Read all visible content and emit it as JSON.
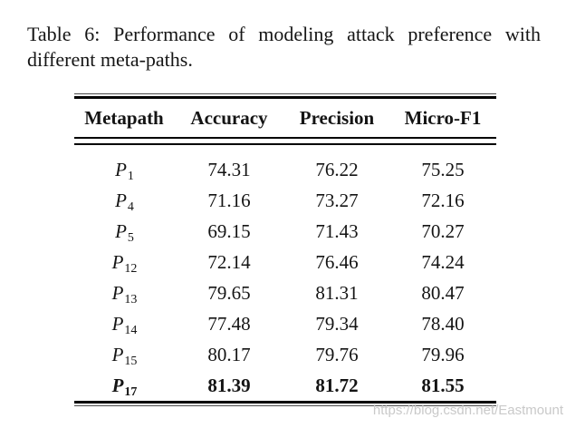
{
  "caption": {
    "line1": "Table 6: Performance of modeling attack preference with",
    "line2": "different meta-paths."
  },
  "table": {
    "columns": [
      "Metapath",
      "Accuracy",
      "Precision",
      "Micro-F1"
    ],
    "rows": [
      {
        "metapath_base": "P",
        "metapath_sub": "1",
        "accuracy": "74.31",
        "precision": "76.22",
        "micro_f1": "75.25",
        "bold": false
      },
      {
        "metapath_base": "P",
        "metapath_sub": "4",
        "accuracy": "71.16",
        "precision": "73.27",
        "micro_f1": "72.16",
        "bold": false
      },
      {
        "metapath_base": "P",
        "metapath_sub": "5",
        "accuracy": "69.15",
        "precision": "71.43",
        "micro_f1": "70.27",
        "bold": false
      },
      {
        "metapath_base": "P",
        "metapath_sub": "12",
        "accuracy": "72.14",
        "precision": "76.46",
        "micro_f1": "74.24",
        "bold": false
      },
      {
        "metapath_base": "P",
        "metapath_sub": "13",
        "accuracy": "79.65",
        "precision": "81.31",
        "micro_f1": "80.47",
        "bold": false
      },
      {
        "metapath_base": "P",
        "metapath_sub": "14",
        "accuracy": "77.48",
        "precision": "79.34",
        "micro_f1": "78.40",
        "bold": false
      },
      {
        "metapath_base": "P",
        "metapath_sub": "15",
        "accuracy": "80.17",
        "precision": "79.76",
        "micro_f1": "79.96",
        "bold": false
      },
      {
        "metapath_base": "P",
        "metapath_sub": "17",
        "accuracy": "81.39",
        "precision": "81.72",
        "micro_f1": "81.55",
        "bold": true
      }
    ]
  },
  "watermark": {
    "text": "https://blog.csdn.net/Eastmount",
    "color": "#c9c9c9"
  },
  "colors": {
    "text": "#151515",
    "rule": "#000000",
    "background": "#ffffff"
  }
}
